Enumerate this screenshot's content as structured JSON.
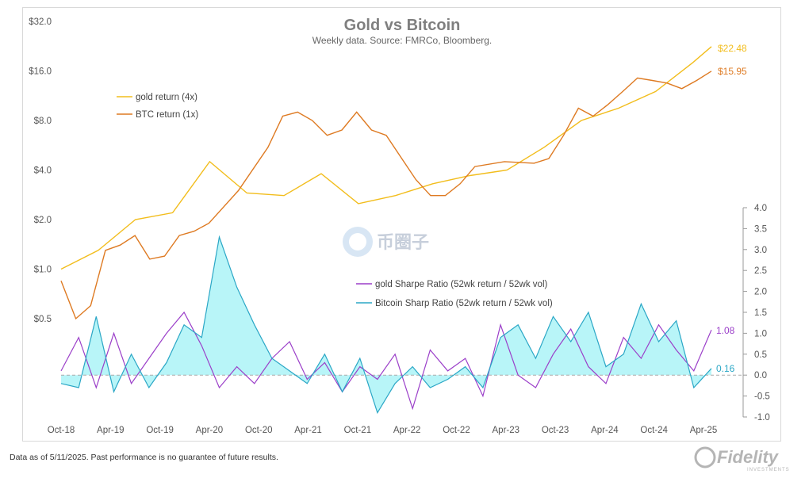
{
  "chart_data": {
    "type": "line",
    "title": "Gold vs Bitcoin",
    "subtitle": "Weekly data.  Source: FMRCo, Bloomberg.",
    "x_ticks": [
      "Oct-18",
      "Apr-19",
      "Oct-19",
      "Apr-20",
      "Oct-20",
      "Apr-21",
      "Oct-21",
      "Apr-22",
      "Oct-22",
      "Apr-23",
      "Oct-23",
      "Apr-24",
      "Oct-24",
      "Apr-25"
    ],
    "left_axis": {
      "scale": "log2",
      "ylim": [
        0.5,
        32
      ],
      "ticks": [
        32,
        16,
        8,
        4,
        2,
        1,
        0.5
      ],
      "tick_labels": [
        "$32.0",
        "$16.0",
        "$8.0",
        "$4.0",
        "$2.0",
        "$1.0",
        "$0.5"
      ]
    },
    "right_axis": {
      "ylim": [
        -1.0,
        4.0
      ],
      "ticks": [
        4.0,
        3.5,
        3.0,
        2.5,
        2.0,
        1.5,
        1.0,
        0.5,
        0.0,
        -0.5,
        -1.0
      ],
      "tick_labels": [
        "4.0",
        "3.5",
        "3.0",
        "2.5",
        "2.0",
        "1.5",
        "1.0",
        "0.5",
        "0.0",
        "-0.5",
        "-1.0"
      ]
    },
    "return_series": [
      {
        "name": "gold return (4x)",
        "color": "#f2bd1c",
        "end_label": "$22.48",
        "points": [
          [
            0,
            1.0
          ],
          [
            1,
            1.3
          ],
          [
            2,
            2.0
          ],
          [
            3,
            2.2
          ],
          [
            4,
            4.5
          ],
          [
            5,
            2.9
          ],
          [
            6,
            2.8
          ],
          [
            7,
            3.8
          ],
          [
            8,
            2.5
          ],
          [
            9,
            2.8
          ],
          [
            10,
            3.3
          ],
          [
            11,
            3.7
          ],
          [
            12,
            4.0
          ],
          [
            13,
            5.5
          ],
          [
            14,
            8.0
          ],
          [
            15,
            9.5
          ],
          [
            16,
            12
          ],
          [
            17,
            18
          ],
          [
            17.5,
            22.48
          ]
        ]
      },
      {
        "name": "BTC return (1x)",
        "color": "#de7a22",
        "end_label": "$15.95",
        "points": [
          [
            0,
            0.85
          ],
          [
            0.5,
            0.5
          ],
          [
            1,
            0.6
          ],
          [
            1.5,
            1.3
          ],
          [
            2,
            1.4
          ],
          [
            2.5,
            1.6
          ],
          [
            3,
            1.15
          ],
          [
            3.5,
            1.2
          ],
          [
            4,
            1.6
          ],
          [
            4.5,
            1.7
          ],
          [
            5,
            1.9
          ],
          [
            6,
            3.0
          ],
          [
            7,
            5.5
          ],
          [
            7.5,
            8.5
          ],
          [
            8,
            9.0
          ],
          [
            8.5,
            8.0
          ],
          [
            9,
            6.5
          ],
          [
            9.5,
            7.0
          ],
          [
            10,
            9.0
          ],
          [
            10.5,
            7.0
          ],
          [
            11,
            6.5
          ],
          [
            12,
            3.5
          ],
          [
            12.5,
            2.8
          ],
          [
            13,
            2.8
          ],
          [
            13.5,
            3.3
          ],
          [
            14,
            4.2
          ],
          [
            15,
            4.5
          ],
          [
            16,
            4.4
          ],
          [
            16.5,
            4.7
          ],
          [
            17,
            6.5
          ],
          [
            17.5,
            9.5
          ],
          [
            18,
            8.5
          ],
          [
            18.5,
            10.0
          ],
          [
            19,
            12.0
          ],
          [
            19.5,
            14.5
          ],
          [
            20,
            14.0
          ],
          [
            20.5,
            13.5
          ],
          [
            21,
            12.5
          ],
          [
            21.5,
            14.0
          ],
          [
            22,
            15.95
          ]
        ]
      }
    ],
    "sharpe_series": [
      {
        "name": "gold Sharpe Ratio (52wk return / 52wk vol)",
        "color": "#9b3fc9",
        "end_label": "1.08",
        "points": [
          [
            0,
            0.1
          ],
          [
            1,
            0.9
          ],
          [
            2,
            -0.3
          ],
          [
            3,
            1.0
          ],
          [
            4,
            -0.2
          ],
          [
            5,
            0.4
          ],
          [
            6,
            1.0
          ],
          [
            7,
            1.5
          ],
          [
            8,
            0.7
          ],
          [
            9,
            -0.3
          ],
          [
            10,
            0.2
          ],
          [
            11,
            -0.2
          ],
          [
            12,
            0.4
          ],
          [
            13,
            0.8
          ],
          [
            14,
            -0.1
          ],
          [
            15,
            0.3
          ],
          [
            16,
            -0.4
          ],
          [
            17,
            0.2
          ],
          [
            18,
            -0.1
          ],
          [
            19,
            0.5
          ],
          [
            20,
            -0.8
          ],
          [
            21,
            0.6
          ],
          [
            22,
            0.1
          ],
          [
            23,
            0.4
          ],
          [
            24,
            -0.5
          ],
          [
            25,
            1.2
          ],
          [
            26,
            0.0
          ],
          [
            27,
            -0.3
          ],
          [
            28,
            0.5
          ],
          [
            29,
            1.1
          ],
          [
            30,
            0.2
          ],
          [
            31,
            -0.2
          ],
          [
            32,
            0.9
          ],
          [
            33,
            0.4
          ],
          [
            34,
            1.2
          ],
          [
            35,
            0.6
          ],
          [
            36,
            0.1
          ],
          [
            37,
            1.08
          ]
        ]
      },
      {
        "name": "Bitcoin Sharp Ratio (52wk return / 52wk vol)",
        "color": "#2ba7c6",
        "end_label": "0.16",
        "points": [
          [
            0,
            -0.2
          ],
          [
            1,
            -0.3
          ],
          [
            2,
            1.4
          ],
          [
            3,
            -0.4
          ],
          [
            4,
            0.5
          ],
          [
            5,
            -0.3
          ],
          [
            6,
            0.3
          ],
          [
            7,
            1.2
          ],
          [
            8,
            0.9
          ],
          [
            9,
            3.3
          ],
          [
            10,
            2.1
          ],
          [
            11,
            1.2
          ],
          [
            12,
            0.4
          ],
          [
            13,
            0.1
          ],
          [
            14,
            -0.2
          ],
          [
            15,
            0.5
          ],
          [
            16,
            -0.4
          ],
          [
            17,
            0.4
          ],
          [
            18,
            -0.9
          ],
          [
            19,
            -0.2
          ],
          [
            20,
            0.2
          ],
          [
            21,
            -0.3
          ],
          [
            22,
            -0.1
          ],
          [
            23,
            0.2
          ],
          [
            24,
            -0.3
          ],
          [
            25,
            0.9
          ],
          [
            26,
            1.2
          ],
          [
            27,
            0.4
          ],
          [
            28,
            1.4
          ],
          [
            29,
            0.8
          ],
          [
            30,
            1.5
          ],
          [
            31,
            0.2
          ],
          [
            32,
            0.5
          ],
          [
            33,
            1.7
          ],
          [
            34,
            0.8
          ],
          [
            35,
            1.3
          ],
          [
            36,
            -0.3
          ],
          [
            37,
            0.16
          ]
        ]
      }
    ]
  },
  "footer": {
    "note": "Data as of 5/11/2025. Past performance is no guarantee of future results.",
    "brand": "Fidelity",
    "brand_sub": "INVESTMENTS"
  },
  "watermark": "币圈子",
  "colors": {
    "fill_cyan": "#b8f5f8",
    "zero_line": "#aaaaaa",
    "axis_text": "#555555"
  }
}
